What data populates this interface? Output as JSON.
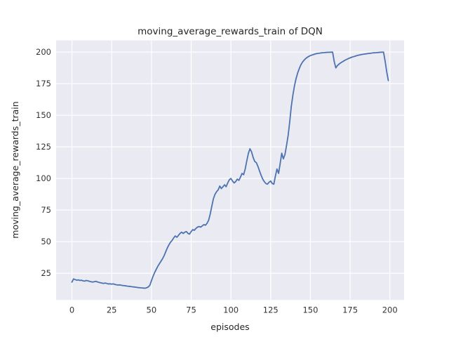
{
  "chart_data": {
    "type": "line",
    "title": "moving_average_rewards_train of DQN",
    "xlabel": "episodes",
    "ylabel": "moving_average_rewards_train",
    "x_ticks": [
      0,
      25,
      50,
      75,
      100,
      125,
      150,
      175,
      200
    ],
    "y_ticks": [
      25,
      50,
      75,
      100,
      125,
      150,
      175,
      200
    ],
    "xlim": [
      -9.95,
      208.95
    ],
    "ylim": [
      3.9,
      209.2
    ],
    "grid": true,
    "legend": "none",
    "style": {
      "line_color": "#4c72b0",
      "plot_bg": "#eaeaf2",
      "grid_color": "#ffffff",
      "fig_bg": "#ffffff",
      "text_color": "#262626"
    },
    "series": [
      {
        "name": "moving_average_rewards_train",
        "x_start": 0,
        "x_step": 1,
        "values": [
          18,
          20.5,
          20,
          19.5,
          19.8,
          19.3,
          19.5,
          19,
          18.8,
          19.3,
          19,
          18.7,
          18.3,
          18,
          18.3,
          18.6,
          18.2,
          17.8,
          17.5,
          17.2,
          17,
          17.3,
          16.9,
          16.5,
          16.7,
          16.4,
          16.6,
          16.2,
          15.9,
          15.7,
          15.8,
          15.5,
          15.3,
          15.2,
          15,
          14.8,
          14.7,
          14.5,
          14.3,
          14.2,
          14,
          13.8,
          13.6,
          13.5,
          13.4,
          13.3,
          13.2,
          13.5,
          14.2,
          15.5,
          19,
          22.5,
          25.5,
          28,
          30.5,
          32.5,
          34.5,
          36.5,
          39,
          42,
          45,
          47.5,
          49.5,
          51,
          53,
          54.5,
          53.5,
          55,
          56.5,
          57.5,
          56.5,
          57.5,
          58,
          56.5,
          56,
          58,
          59.5,
          59,
          60.5,
          61.5,
          62,
          61.5,
          62.5,
          63.5,
          63,
          64.5,
          67,
          72,
          78,
          84,
          87.5,
          89.5,
          91,
          94,
          92,
          93.5,
          95,
          93.5,
          96.5,
          99,
          100,
          98,
          96.5,
          97.5,
          99.5,
          98.5,
          101,
          104,
          103,
          107.5,
          114,
          120,
          123.5,
          121,
          116.5,
          113.5,
          112.5,
          109.5,
          106,
          102.5,
          99.5,
          97.5,
          96,
          95.5,
          97,
          98,
          96,
          95.5,
          102,
          107.5,
          104,
          112,
          120,
          115.5,
          119,
          126,
          134,
          145,
          157,
          166,
          173.5,
          179,
          183.5,
          187,
          189.8,
          192,
          193.6,
          194.8,
          195.8,
          196.6,
          197.2,
          197.7,
          198.1,
          198.5,
          198.8,
          199,
          199.2,
          199.4,
          199.5,
          199.6,
          199.7,
          199.8,
          199.8,
          199.9,
          199.9,
          192.5,
          187.5,
          189.3,
          190.5,
          191.4,
          192.2,
          193,
          193.7,
          194.3,
          194.9,
          195.4,
          195.9,
          196.3,
          196.7,
          197.1,
          197.4,
          197.7,
          198,
          198.2,
          198.4,
          198.6,
          198.8,
          199,
          199.1,
          199.3,
          199.4,
          199.5,
          199.6,
          199.7,
          199.8,
          199.9,
          199.9,
          193,
          184.5,
          177.5
        ]
      }
    ]
  }
}
